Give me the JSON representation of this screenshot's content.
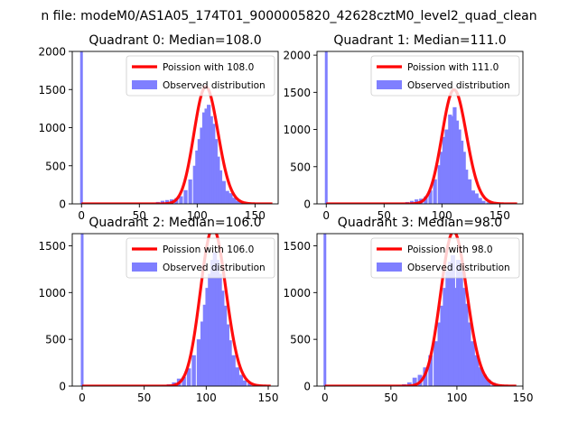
{
  "figure": {
    "suptitle": "n file: modeM0/AS1A05_174T01_9000005820_42628cztM0_level2_quad_clean"
  },
  "colors": {
    "hist": "#7f7fff",
    "fit": "#ff0000"
  },
  "chart_data": [
    {
      "type": "bar",
      "title": "Quadrant 0: Median=108.0",
      "xlim": [
        -8,
        170
      ],
      "ylim": [
        0,
        2000
      ],
      "xticks": [
        0,
        50,
        100,
        150
      ],
      "yticks": [
        0,
        500,
        1000,
        1500,
        2000
      ],
      "legend": {
        "placement": "top-right",
        "entries": [
          "Poission with 108.0",
          "Observed distribution"
        ]
      },
      "series": [
        {
          "name": "Observed distribution",
          "type": "histogram",
          "bin_width": 3.3,
          "spike_at_zero": 2000,
          "bins": [
            [
              62,
              10
            ],
            [
              66,
              25
            ],
            [
              70,
              40
            ],
            [
              74,
              50
            ],
            [
              78,
              60
            ],
            [
              82,
              75
            ],
            [
              86,
              100
            ],
            [
              90,
              180
            ],
            [
              94,
              320
            ],
            [
              98,
              500
            ],
            [
              100,
              700
            ],
            [
              102,
              850
            ],
            [
              104,
              1000
            ],
            [
              106,
              1200
            ],
            [
              108,
              1250
            ],
            [
              110,
              1300
            ],
            [
              112,
              1150
            ],
            [
              114,
              1050
            ],
            [
              116,
              850
            ],
            [
              118,
              620
            ],
            [
              120,
              440
            ],
            [
              123,
              300
            ],
            [
              126,
              170
            ],
            [
              129,
              140
            ],
            [
              132,
              80
            ],
            [
              135,
              40
            ],
            [
              138,
              20
            ],
            [
              142,
              10
            ]
          ]
        },
        {
          "name": "Poission with 108.0",
          "type": "line",
          "mean": 108.0,
          "x_range": [
            0,
            165
          ]
        }
      ]
    },
    {
      "type": "bar",
      "title": "Quadrant 1: Median=111.0",
      "xlim": [
        -8,
        170
      ],
      "ylim": [
        0,
        2050
      ],
      "xticks": [
        0,
        50,
        100,
        150
      ],
      "yticks": [
        0,
        500,
        1000,
        1500,
        2000
      ],
      "legend": {
        "placement": "top-right",
        "entries": [
          "Poission with 111.0",
          "Observed distribution"
        ]
      },
      "series": [
        {
          "name": "Observed distribution",
          "type": "histogram",
          "bin_width": 3.3,
          "spike_at_zero": 2050,
          "bins": [
            [
              66,
              10
            ],
            [
              70,
              25
            ],
            [
              74,
              40
            ],
            [
              78,
              60
            ],
            [
              82,
              70
            ],
            [
              86,
              100
            ],
            [
              90,
              180
            ],
            [
              94,
              330
            ],
            [
              98,
              520
            ],
            [
              100,
              700
            ],
            [
              102,
              900
            ],
            [
              104,
              1000
            ],
            [
              107,
              1200
            ],
            [
              109,
              1180
            ],
            [
              111,
              1300
            ],
            [
              113,
              1120
            ],
            [
              115,
              1000
            ],
            [
              117,
              850
            ],
            [
              119,
              700
            ],
            [
              121,
              460
            ],
            [
              124,
              330
            ],
            [
              127,
              180
            ],
            [
              130,
              140
            ],
            [
              133,
              80
            ],
            [
              136,
              40
            ],
            [
              140,
              20
            ],
            [
              145,
              10
            ]
          ]
        },
        {
          "name": "Poission with 111.0",
          "type": "line",
          "mean": 111.0,
          "x_range": [
            0,
            165
          ]
        }
      ]
    },
    {
      "type": "bar",
      "title": "Quadrant 2: Median=106.0",
      "xlim": [
        -8,
        158
      ],
      "ylim": [
        0,
        1630
      ],
      "xticks": [
        0,
        50,
        100,
        150
      ],
      "yticks": [
        0,
        500,
        1000,
        1500
      ],
      "legend": {
        "placement": "top-right",
        "entries": [
          "Poission with 106.0",
          "Observed distribution"
        ]
      },
      "series": [
        {
          "name": "Observed distribution",
          "type": "histogram",
          "bin_width": 3.3,
          "spike_at_zero": 1630,
          "bins": [
            [
              66,
              10
            ],
            [
              70,
              20
            ],
            [
              74,
              40
            ],
            [
              78,
              80
            ],
            [
              82,
              100
            ],
            [
              86,
              190
            ],
            [
              90,
              330
            ],
            [
              94,
              500
            ],
            [
              97,
              690
            ],
            [
              99,
              870
            ],
            [
              101,
              1050
            ],
            [
              103,
              1200
            ],
            [
              105,
              1350
            ],
            [
              107,
              1430
            ],
            [
              109,
              1350
            ],
            [
              111,
              1200
            ],
            [
              113,
              1020
            ],
            [
              115,
              860
            ],
            [
              117,
              660
            ],
            [
              119,
              490
            ],
            [
              122,
              330
            ],
            [
              125,
              200
            ],
            [
              128,
              120
            ],
            [
              131,
              60
            ],
            [
              135,
              30
            ],
            [
              140,
              15
            ],
            [
              146,
              8
            ]
          ]
        },
        {
          "name": "Poission with 106.0",
          "type": "line",
          "mean": 106.0,
          "x_range": [
            0,
            152
          ]
        }
      ]
    },
    {
      "type": "bar",
      "title": "Quadrant 3: Median=98.0",
      "xlim": [
        -6,
        150
      ],
      "ylim": [
        0,
        1630
      ],
      "xticks": [
        0,
        50,
        100,
        150
      ],
      "yticks": [
        0,
        500,
        1000,
        1500
      ],
      "legend": {
        "placement": "top-right",
        "entries": [
          "Poission with 98.0",
          "Observed distribution"
        ]
      },
      "series": [
        {
          "name": "Observed distribution",
          "type": "histogram",
          "bin_width": 3.3,
          "spike_at_zero": 1630,
          "bins": [
            [
              56,
              10
            ],
            [
              60,
              20
            ],
            [
              64,
              40
            ],
            [
              68,
              90
            ],
            [
              72,
              120
            ],
            [
              76,
              200
            ],
            [
              80,
              330
            ],
            [
              84,
              480
            ],
            [
              87,
              680
            ],
            [
              89,
              860
            ],
            [
              91,
              1050
            ],
            [
              93,
              1230
            ],
            [
              95,
              1330
            ],
            [
              97,
              1400
            ],
            [
              99,
              1050
            ],
            [
              101,
              1350
            ],
            [
              103,
              1230
            ],
            [
              105,
              1050
            ],
            [
              107,
              880
            ],
            [
              109,
              680
            ],
            [
              112,
              480
            ],
            [
              115,
              330
            ],
            [
              118,
              200
            ],
            [
              121,
              120
            ],
            [
              124,
              70
            ],
            [
              128,
              35
            ],
            [
              132,
              15
            ],
            [
              137,
              8
            ]
          ]
        },
        {
          "name": "Poission with 98.0",
          "type": "line",
          "mean": 98.0,
          "x_range": [
            0,
            145
          ]
        }
      ]
    }
  ]
}
